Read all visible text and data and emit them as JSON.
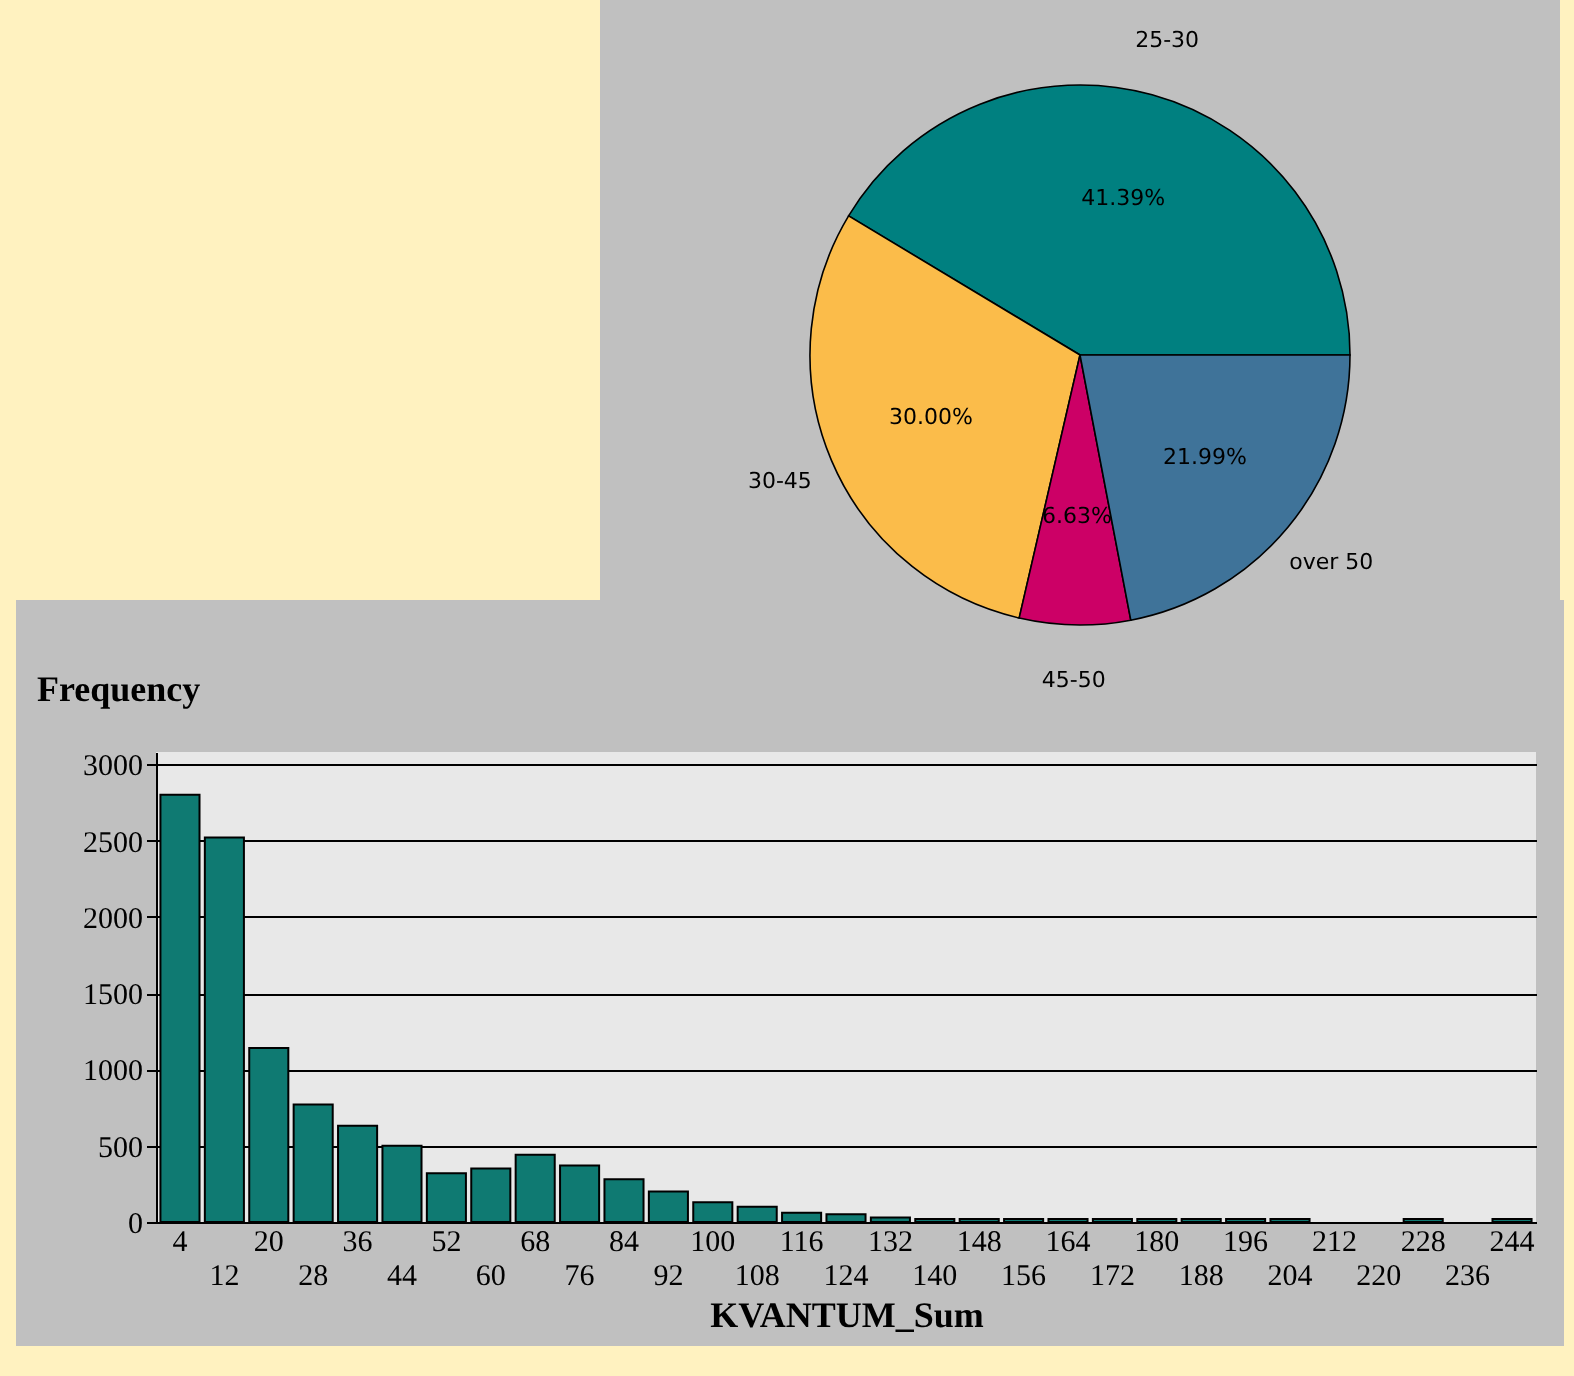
{
  "chart_data": [
    {
      "type": "bar",
      "xlabel": "KVANTUM_Sum",
      "ylabel": "Frequency",
      "categories": [
        "4",
        "12",
        "20",
        "28",
        "36",
        "44",
        "52",
        "60",
        "68",
        "76",
        "84",
        "92",
        "100",
        "108",
        "116",
        "124",
        "132",
        "140",
        "148",
        "156",
        "164",
        "172",
        "180",
        "188",
        "196",
        "204",
        "212",
        "220",
        "228",
        "236",
        "244"
      ],
      "values": [
        2800,
        2520,
        1140,
        770,
        630,
        500,
        320,
        350,
        440,
        370,
        280,
        200,
        130,
        100,
        60,
        50,
        30,
        20,
        20,
        20,
        20,
        20,
        20,
        20,
        20,
        20,
        null,
        null,
        20,
        null,
        20
      ],
      "color": "#0f7a72",
      "ylim": [
        0,
        3080
      ],
      "yticks": [
        0,
        500,
        1000,
        1500,
        2000,
        2500,
        3000
      ],
      "grid": "y"
    },
    {
      "type": "pie",
      "categories": [
        "25-30",
        "30-45",
        "45-50",
        "over 50"
      ],
      "values": [
        41.39,
        30.0,
        6.63,
        21.99
      ],
      "colors": [
        "#008080",
        "#fbbc4a",
        "#cc0066",
        "#3f7399"
      ],
      "value_labels": [
        "41.39%",
        "30.00%",
        "6.63%",
        "21.99%"
      ]
    }
  ]
}
